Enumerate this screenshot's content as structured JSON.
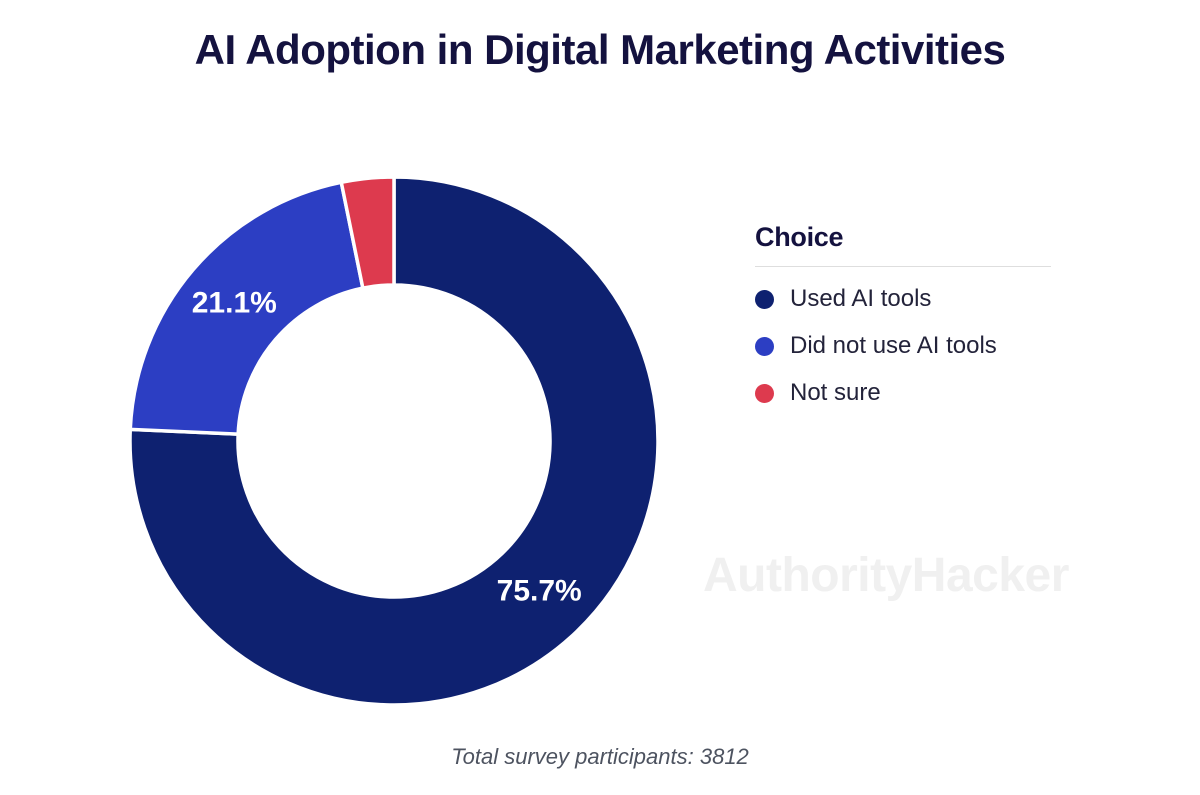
{
  "page": {
    "title": "AI Adoption in Digital Marketing Activities",
    "caption": "Total survey participants: 3812",
    "watermark": "AuthorityHacker",
    "background_color": "#ffffff"
  },
  "legend": {
    "title": "Choice"
  },
  "chart_data": {
    "type": "pie",
    "subtype": "donut",
    "title": "AI Adoption in Digital Marketing Activities",
    "categories": [
      "Used AI tools",
      "Did not use AI tools",
      "Not sure"
    ],
    "values": [
      75.7,
      21.1,
      3.2
    ],
    "segments": [
      {
        "label": "Used AI tools",
        "value": 75.7,
        "display_label": "75.7%",
        "color": "#0e2170"
      },
      {
        "label": "Did not use AI tools",
        "value": 21.1,
        "display_label": "21.1%",
        "color": "#2c3ec3"
      },
      {
        "label": "Not sure",
        "value": 3.2,
        "display_label": "",
        "color": "#dd3a4e"
      }
    ],
    "start_angle_deg": 0,
    "direction": "clockwise",
    "inner_radius_ratio": 0.591,
    "separator_color": "#ffffff",
    "slice_label_color": "#ffffff",
    "legend_position": "right",
    "legend_title": "Choice",
    "annotation": "Total survey participants: 3812",
    "total_participants": 3812
  }
}
